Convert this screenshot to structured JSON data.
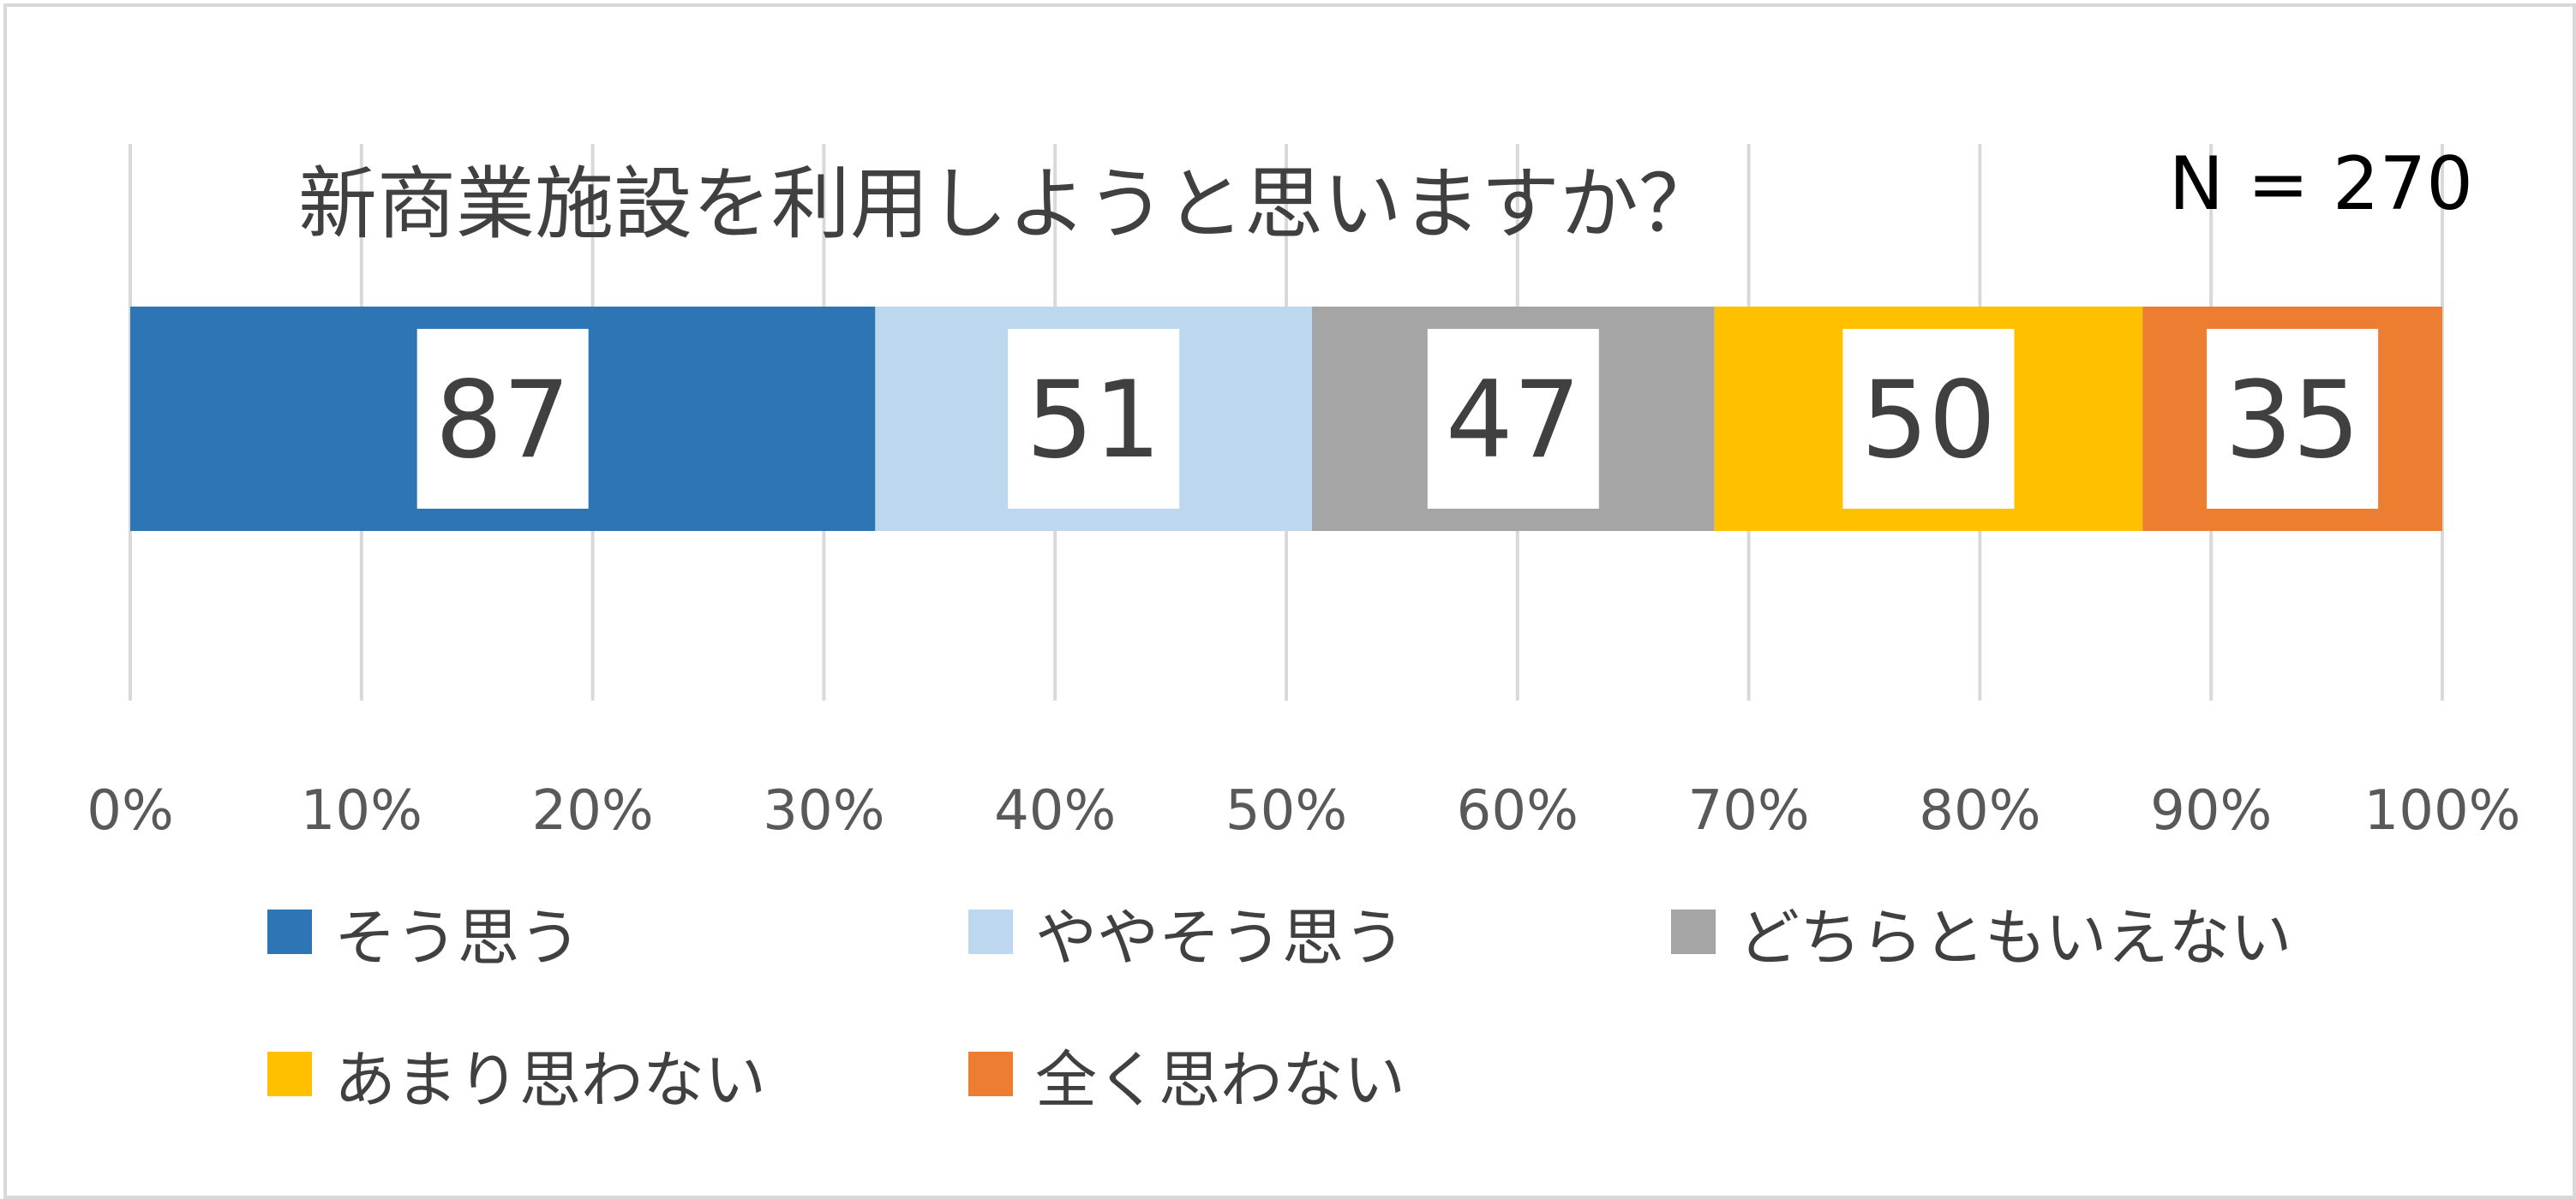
{
  "chart_data": {
    "type": "bar",
    "orientation": "horizontal",
    "stacking": "percent",
    "title": "新商業施設を利用しようと思いますか？",
    "sample_size_label": "N = 270",
    "total": 270,
    "series": [
      {
        "name": "そう思う",
        "values": [
          87
        ],
        "color": "#2E75B6"
      },
      {
        "name": "ややそう思う",
        "values": [
          51
        ],
        "color": "#BDD7EE"
      },
      {
        "name": "どちらともいえない",
        "values": [
          47
        ],
        "color": "#A5A5A5"
      },
      {
        "name": "あまり思わない",
        "values": [
          50
        ],
        "color": "#FFC000"
      },
      {
        "name": "全く思わない",
        "values": [
          35
        ],
        "color": "#ED7D31"
      }
    ],
    "x_ticks": [
      "0%",
      "10%",
      "20%",
      "30%",
      "40%",
      "50%",
      "60%",
      "70%",
      "80%",
      "90%",
      "100%"
    ],
    "xlim": [
      0,
      100
    ],
    "grid": true,
    "legend_position": "bottom"
  }
}
